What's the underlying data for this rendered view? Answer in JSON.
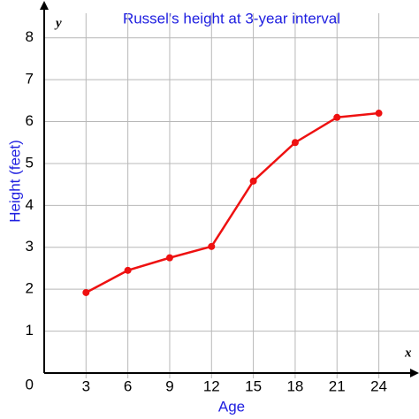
{
  "chart_data": {
    "type": "line",
    "title": "Russel's height at 3-year interval",
    "x_label": "Age",
    "y_label": "Height (feet)",
    "x_axis_letter": "x",
    "y_axis_letter": "y",
    "x": [
      3,
      6,
      9,
      12,
      15,
      18,
      21,
      24
    ],
    "series": [
      {
        "name": "Height",
        "color": "#ee1111",
        "values": [
          1.92,
          2.45,
          2.75,
          3.02,
          4.58,
          5.5,
          6.1,
          6.2
        ]
      }
    ],
    "xlim": [
      0,
      26.5
    ],
    "ylim": [
      0,
      8.5
    ],
    "xticks": [
      0,
      3,
      6,
      9,
      12,
      15,
      18,
      21,
      24
    ],
    "yticks": [
      1,
      2,
      3,
      4,
      5,
      6,
      7,
      8
    ],
    "grid": true
  }
}
